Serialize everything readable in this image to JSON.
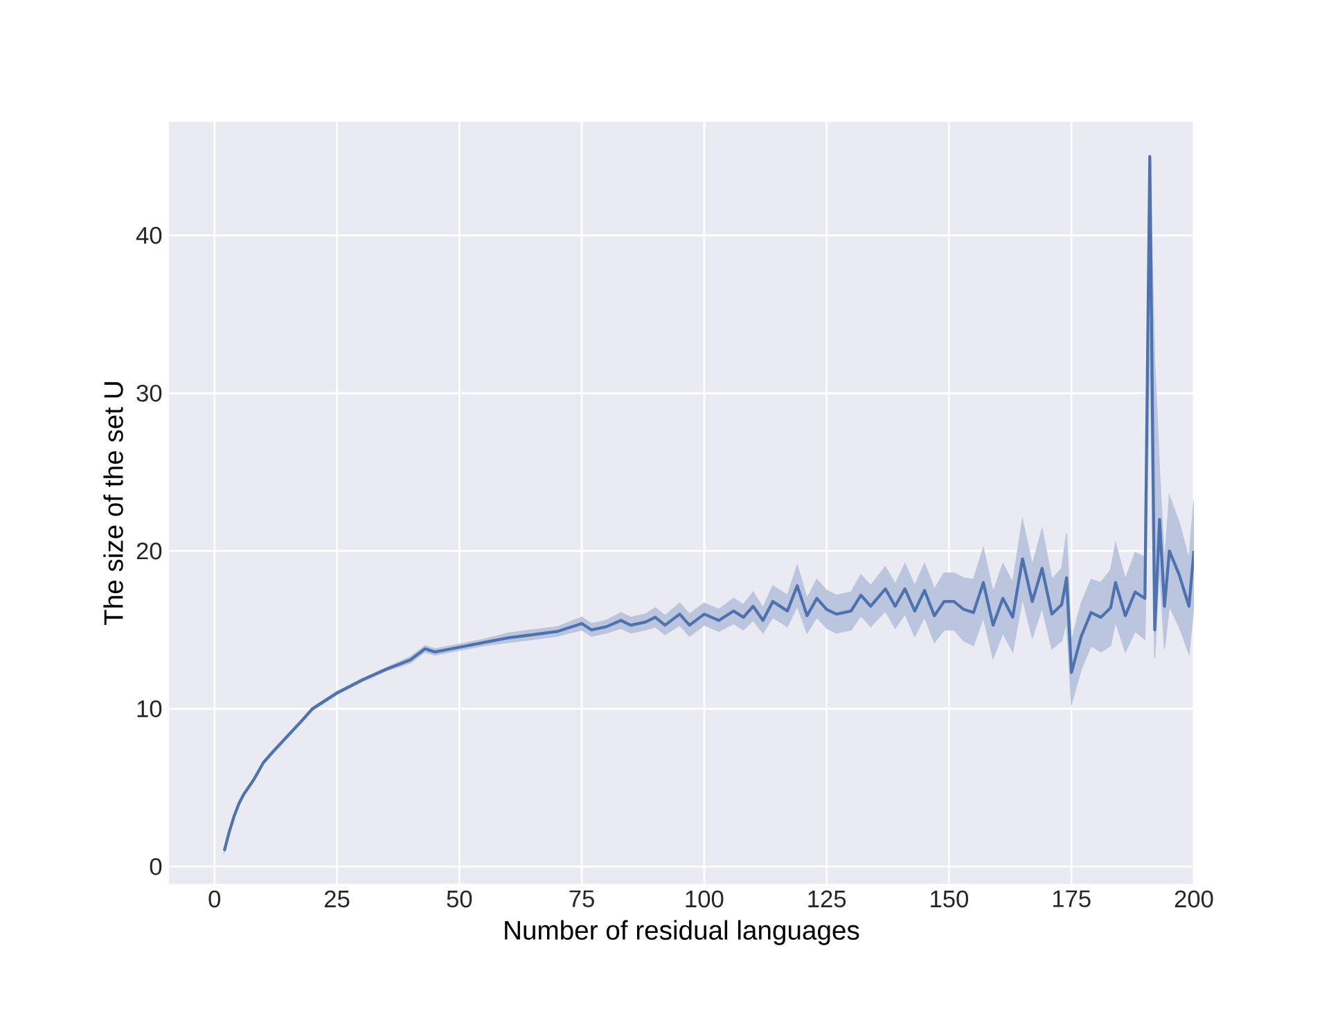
{
  "chart_data": {
    "type": "line",
    "xlabel": "Number of residual languages",
    "ylabel": "The size of the set U",
    "xlim": [
      -9.3,
      200
    ],
    "ylim": [
      -1.1,
      47.2
    ],
    "xticks": [
      0,
      25,
      50,
      75,
      100,
      125,
      150,
      175,
      200
    ],
    "yticks": [
      0,
      10,
      20,
      30,
      40
    ],
    "grid": true,
    "series": [
      {
        "color": "#4c72b0",
        "x": [
          2,
          3,
          4,
          5,
          6,
          8,
          10,
          12,
          15,
          18,
          20,
          25,
          30,
          35,
          40,
          43,
          45,
          50,
          55,
          60,
          65,
          70,
          75,
          77,
          80,
          83,
          85,
          88,
          90,
          92,
          95,
          97,
          100,
          103,
          106,
          108,
          110,
          112,
          114,
          117,
          119,
          121,
          123,
          125,
          127,
          130,
          132,
          134,
          137,
          139,
          141,
          143,
          145,
          147,
          149,
          151,
          153,
          155,
          157,
          159,
          161,
          163,
          165,
          167,
          169,
          171,
          173,
          174,
          175,
          177,
          179,
          181,
          183,
          184,
          186,
          188,
          190,
          191,
          192,
          193,
          194,
          195,
          197,
          199,
          200
        ],
        "values": [
          1,
          2.2,
          3.2,
          4,
          4.6,
          5.5,
          6.6,
          7.3,
          8.3,
          9.3,
          10,
          11,
          11.8,
          12.5,
          13.1,
          13.8,
          13.6,
          13.9,
          14.2,
          14.5,
          14.7,
          14.9,
          15.4,
          15.0,
          15.2,
          15.6,
          15.3,
          15.5,
          15.8,
          15.3,
          16.0,
          15.3,
          16.0,
          15.6,
          16.2,
          15.8,
          16.5,
          15.6,
          16.8,
          16.2,
          17.8,
          15.9,
          17.0,
          16.3,
          16.0,
          16.2,
          17.2,
          16.5,
          17.6,
          16.5,
          17.6,
          16.2,
          17.5,
          15.9,
          16.8,
          16.8,
          16.3,
          16.1,
          18.0,
          15.3,
          17.0,
          15.8,
          19.5,
          16.8,
          18.9,
          16.0,
          16.6,
          18.3,
          12.3,
          14.6,
          16.1,
          15.8,
          16.4,
          18.0,
          15.9,
          17.4,
          17.0,
          45,
          15,
          22,
          16.5,
          20,
          18.5,
          16.5,
          20
        ],
        "lower": [
          0.95,
          2.1,
          3.1,
          3.9,
          4.5,
          5.4,
          6.5,
          7.2,
          8.2,
          9.2,
          9.9,
          10.9,
          11.7,
          12.4,
          12.9,
          13.6,
          13.4,
          13.7,
          14.0,
          14.2,
          14.4,
          14.6,
          15.0,
          14.6,
          14.8,
          15.1,
          14.8,
          15.0,
          15.2,
          14.7,
          15.3,
          14.6,
          15.3,
          14.9,
          15.4,
          15.0,
          15.6,
          14.8,
          15.8,
          15.2,
          16.5,
          14.8,
          15.8,
          15.1,
          14.8,
          15.0,
          15.9,
          15.2,
          16.2,
          15.1,
          16.0,
          14.6,
          15.8,
          14.2,
          15.0,
          15.0,
          14.3,
          14.0,
          15.8,
          13.2,
          14.8,
          13.6,
          17.0,
          14.5,
          16.4,
          13.8,
          14.3,
          15.5,
          10.3,
          12.5,
          14.0,
          13.6,
          14.0,
          15.5,
          13.6,
          14.9,
          14.4,
          33,
          13.2,
          19,
          13.8,
          16.5,
          15.2,
          13.5,
          16.5
        ],
        "upper": [
          1.05,
          2.3,
          3.3,
          4.1,
          4.7,
          5.6,
          6.7,
          7.4,
          8.4,
          9.4,
          10.1,
          11.1,
          11.9,
          12.6,
          13.3,
          14.0,
          13.8,
          14.1,
          14.4,
          14.8,
          15.0,
          15.2,
          15.8,
          15.4,
          15.6,
          16.1,
          15.8,
          16.0,
          16.4,
          15.9,
          16.7,
          16.0,
          16.7,
          16.3,
          17.0,
          16.6,
          17.4,
          16.4,
          17.8,
          17.2,
          19.1,
          17.0,
          18.2,
          17.5,
          17.2,
          17.4,
          18.5,
          17.8,
          19.0,
          17.9,
          19.2,
          17.8,
          19.2,
          17.6,
          18.6,
          18.6,
          18.3,
          18.2,
          20.2,
          17.4,
          19.2,
          18.0,
          22.0,
          19.1,
          21.4,
          18.2,
          18.9,
          21.1,
          14.3,
          16.7,
          18.2,
          18.0,
          18.8,
          20.5,
          18.2,
          19.9,
          19.6,
          45,
          32,
          25,
          19.2,
          23.5,
          21.8,
          19.5,
          23.2
        ]
      }
    ]
  }
}
